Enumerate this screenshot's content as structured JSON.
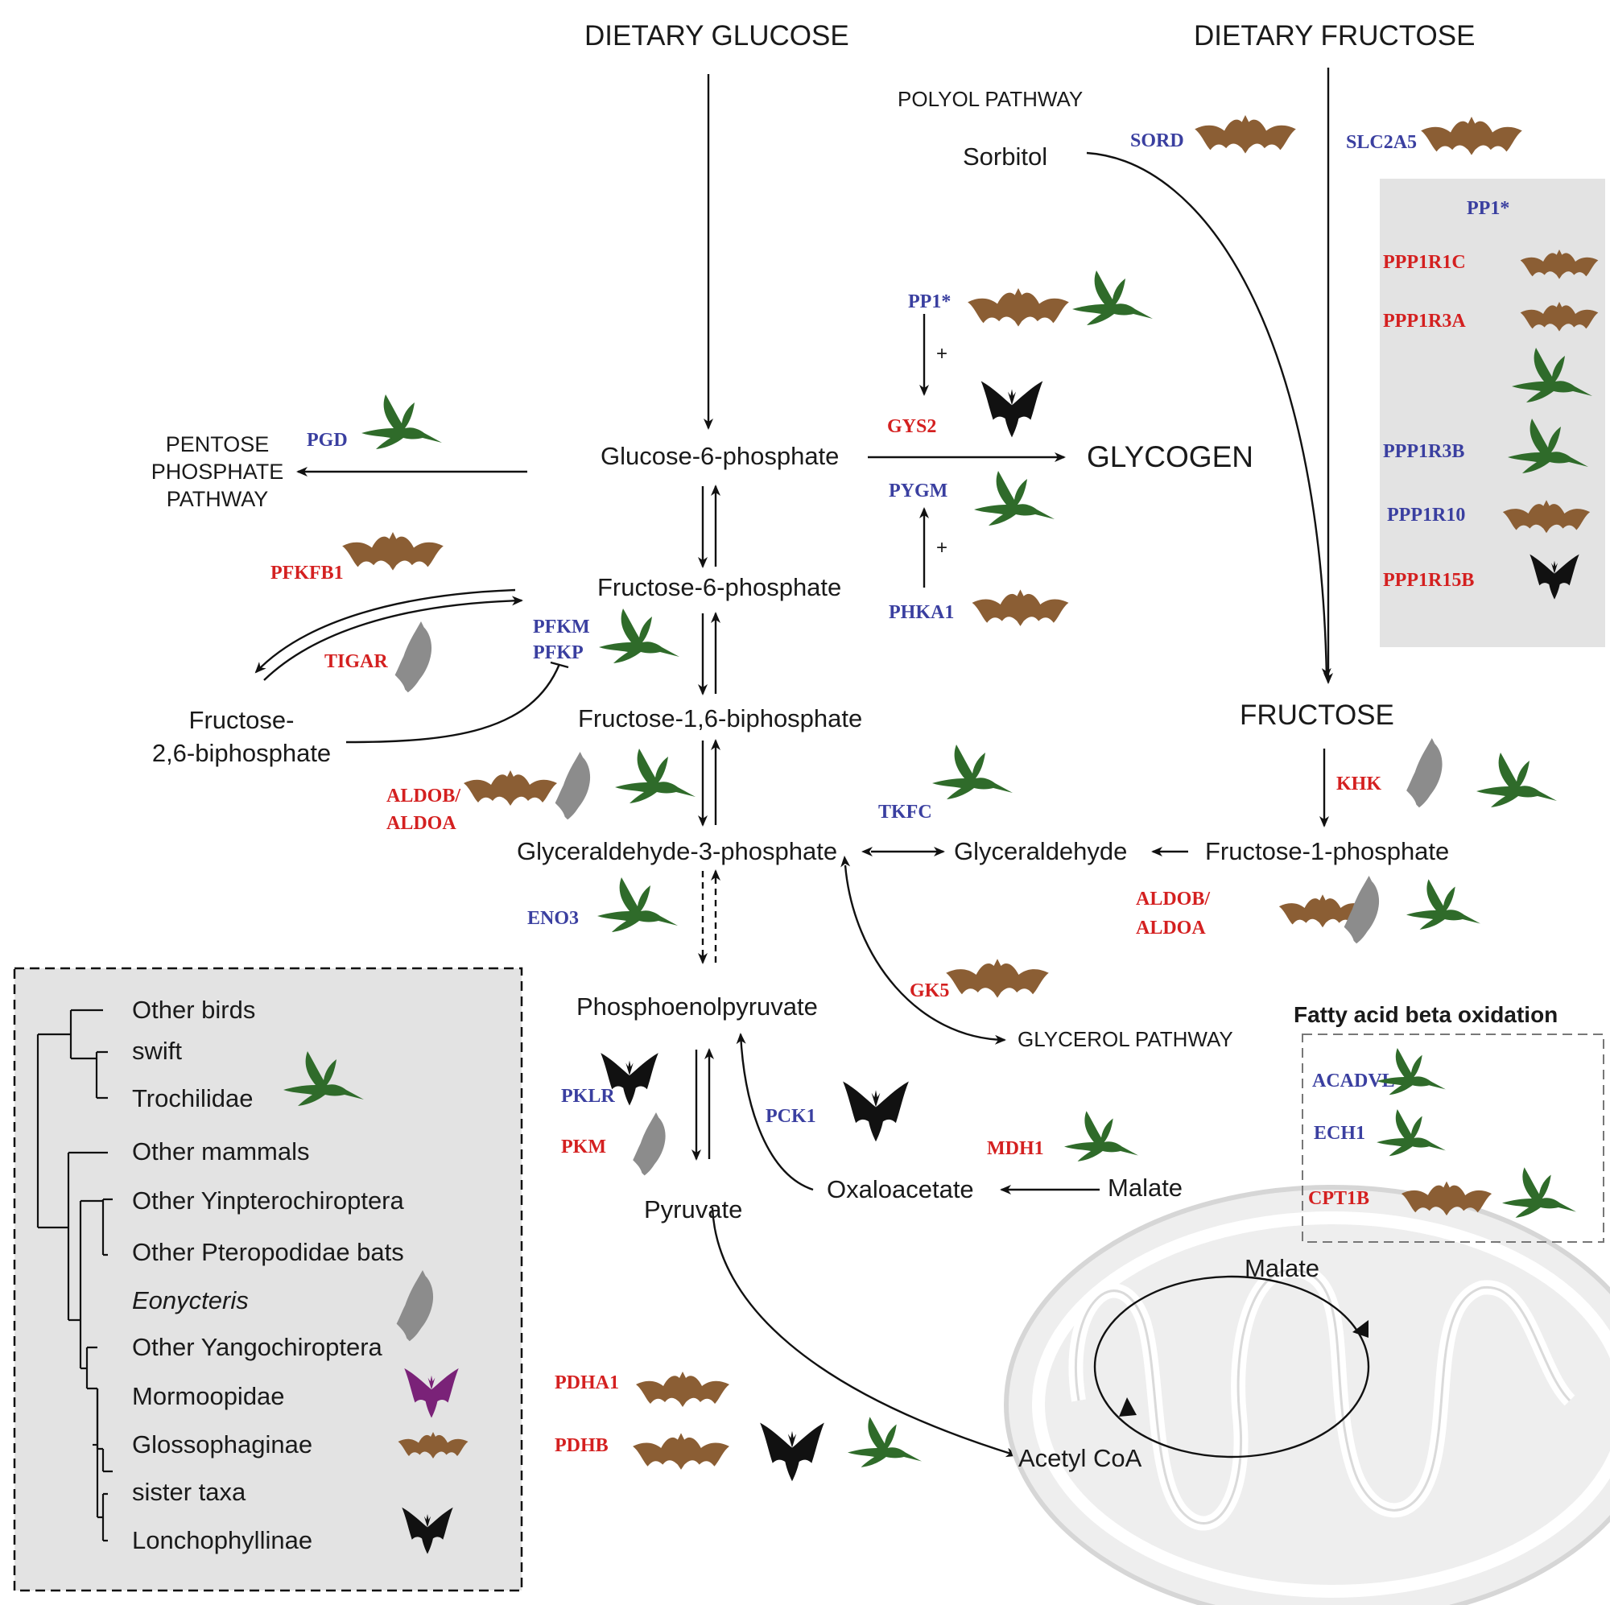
{
  "colors": {
    "hummingbird": "#2f6b2a",
    "glossophaginae_bat": "#8b5e34",
    "lonchophyllinae_bat": "#111111",
    "eonycteris_bat": "#8c8c8c",
    "mormoopidae_bat": "#7a2278",
    "upregulated_gene": "#d42020",
    "downregulated_gene": "#3a3fa0",
    "panel_bg": "#e3e3e3"
  },
  "metabolites": {
    "dietary_glucose": "DIETARY GLUCOSE",
    "dietary_fructose": "DIETARY FRUCTOSE",
    "polyol_pathway": "POLYOL PATHWAY",
    "sorbitol": "Sorbitol",
    "glucose_6_phosphate": "Glucose-6-phosphate",
    "glycogen": "GLYCOGEN",
    "pentose_line1": "PENTOSE",
    "pentose_line2": "PHOSPHATE",
    "pentose_line3": "PATHWAY",
    "fructose_6_phosphate": "Fructose-6-phosphate",
    "fructose_26_line1": "Fructose-",
    "fructose_26_line2": "2,6-biphosphate",
    "fructose_16_biphosphate": "Fructose-1,6-biphosphate",
    "fructose": "FRUCTOSE",
    "glyceraldehyde_3_phosphate": "Glyceraldehyde-3-phosphate",
    "glyceraldehyde": "Glyceraldehyde",
    "fructose_1_phosphate": "Fructose-1-phosphate",
    "phosphoenolpyruvate": "Phosphoenolpyruvate",
    "glycerol_pathway": "GLYCEROL PATHWAY",
    "pyruvate": "Pyruvate",
    "oxaloacetate": "Oxaloacetate",
    "malate": "Malate",
    "malate_mito": "Malate",
    "acetyl_coa": "Acetyl CoA"
  },
  "genes": {
    "sord": "SORD",
    "slc2a5": "SLC2A5",
    "pp1_main": "PP1*",
    "gys2": "GYS2",
    "pygm": "PYGM",
    "phka1": "PHKA1",
    "pgd": "PGD",
    "pfkfb1": "PFKFB1",
    "tigar": "TIGAR",
    "pfkm": "PFKM",
    "pfkp": "PFKP",
    "aldob_left": "ALDOB/",
    "aldoa_left": "ALDOA",
    "tkfc": "TKFC",
    "khk": "KHK",
    "aldob_right": "ALDOB/",
    "aldoa_right": "ALDOA",
    "eno3": "ENO3",
    "gk5": "GK5",
    "pklr": "PKLR",
    "pkm": "PKM",
    "pck1": "PCK1",
    "mdh1": "MDH1",
    "pdha1": "PDHA1",
    "pdhb": "PDHB",
    "plus1": "+",
    "plus2": "+"
  },
  "pp1_panel": {
    "title": "PP1*",
    "genes": [
      "PPP1R1C",
      "PPP1R3A",
      "PPP1R3B",
      "PPP1R10",
      "PPP1R15B"
    ]
  },
  "fatty_acid_panel": {
    "title": "Fatty acid beta oxidation",
    "genes": [
      "ACADVL",
      "ECH1",
      "CPT1B"
    ]
  },
  "tree": {
    "taxa": [
      "Other birds",
      "swift",
      "Trochilidae",
      "Other mammals",
      "Other Yinpterochiroptera",
      "Other Pteropodidae bats",
      "Eonycteris",
      "Other Yangochiroptera",
      "Mormoopidae",
      "Glossophaginae",
      "sister taxa",
      "Lonchophyllinae"
    ]
  }
}
